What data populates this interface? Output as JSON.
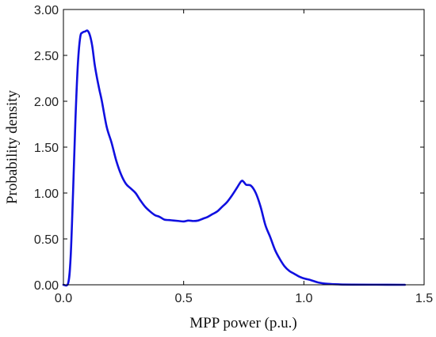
{
  "chart_data": {
    "type": "line",
    "title": "",
    "xlabel": "MPP power (p.u.)",
    "ylabel": "Probability density",
    "xlim": [
      0,
      1.5
    ],
    "ylim": [
      0,
      3.0
    ],
    "grid": false,
    "legend": "none",
    "x_ticks": [
      0.0,
      0.5,
      1.0,
      1.5
    ],
    "x_tick_labels": [
      "0.0",
      "0.5",
      "1.0",
      "1.5"
    ],
    "y_ticks": [
      0.0,
      0.5,
      1.0,
      1.5,
      2.0,
      2.5,
      3.0
    ],
    "y_tick_labels": [
      "0.00",
      "0.50",
      "1.00",
      "1.50",
      "2.00",
      "2.50",
      "3.00"
    ],
    "series": [
      {
        "color": "#1010e0",
        "x": [
          0.0,
          0.02,
          0.03,
          0.04,
          0.05,
          0.06,
          0.07,
          0.08,
          0.09,
          0.1,
          0.11,
          0.12,
          0.13,
          0.14,
          0.15,
          0.16,
          0.18,
          0.2,
          0.22,
          0.24,
          0.26,
          0.28,
          0.3,
          0.32,
          0.34,
          0.36,
          0.38,
          0.4,
          0.42,
          0.44,
          0.46,
          0.48,
          0.5,
          0.52,
          0.54,
          0.56,
          0.58,
          0.6,
          0.62,
          0.64,
          0.66,
          0.68,
          0.7,
          0.72,
          0.74,
          0.75,
          0.76,
          0.78,
          0.8,
          0.82,
          0.84,
          0.86,
          0.88,
          0.9,
          0.92,
          0.94,
          0.96,
          0.98,
          1.0,
          1.03,
          1.06,
          1.1,
          1.15,
          1.2,
          1.3,
          1.42
        ],
        "y": [
          0.0,
          0.02,
          0.3,
          1.0,
          1.8,
          2.4,
          2.7,
          2.75,
          2.76,
          2.77,
          2.72,
          2.6,
          2.4,
          2.25,
          2.12,
          2.0,
          1.72,
          1.55,
          1.35,
          1.2,
          1.1,
          1.05,
          1.0,
          0.92,
          0.85,
          0.8,
          0.76,
          0.74,
          0.71,
          0.705,
          0.7,
          0.695,
          0.69,
          0.7,
          0.695,
          0.7,
          0.72,
          0.74,
          0.77,
          0.8,
          0.85,
          0.9,
          0.97,
          1.05,
          1.13,
          1.12,
          1.09,
          1.08,
          1.0,
          0.85,
          0.65,
          0.52,
          0.38,
          0.28,
          0.2,
          0.15,
          0.12,
          0.09,
          0.07,
          0.05,
          0.025,
          0.01,
          0.004,
          0.002,
          0.001,
          0.0
        ]
      }
    ]
  }
}
